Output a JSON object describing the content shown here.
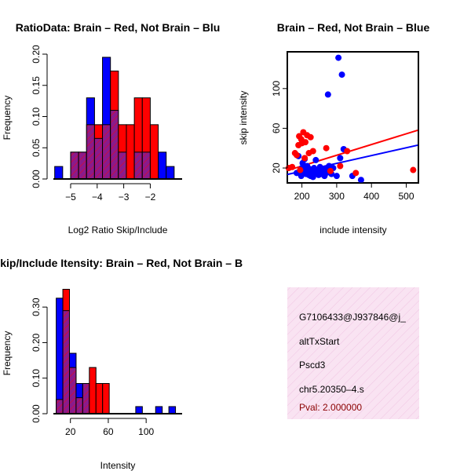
{
  "colors": {
    "red": "#ff0000",
    "blue": "#0000ff",
    "purple": "#8b1a8b",
    "info_bg": "#f7dcef",
    "pval": "#8b0000"
  },
  "chart_data": [
    {
      "type": "bar",
      "id": "ratio_hist",
      "title": "RatioData: Brain – Red, Not Brain – Blu",
      "xlabel": "Log2 Ratio Skip/Include",
      "ylabel": "Frequency",
      "xlim": [
        -5.65,
        -0.8
      ],
      "ylim": [
        0,
        0.2
      ],
      "xticks": [
        -5,
        -4,
        -3,
        -2
      ],
      "xtick_labels": [
        "−5",
        "−4",
        "−3",
        "−2"
      ],
      "yticks": [
        0,
        0.05,
        0.1,
        0.15,
        0.2
      ],
      "ytick_labels": [
        "0.00",
        "0.05",
        "0.10",
        "0.15",
        "0.20"
      ],
      "bin_edges": [
        -5.6,
        -5.3,
        -5.0,
        -4.7,
        -4.4,
        -4.1,
        -3.8,
        -3.5,
        -3.2,
        -2.9,
        -2.6,
        -2.3,
        -2.0,
        -1.7,
        -1.4,
        -1.1
      ],
      "series": [
        {
          "name": "Not Brain",
          "color": "blue",
          "values": [
            0.02,
            0.0,
            0.043,
            0.043,
            0.13,
            0.065,
            0.195,
            0.11,
            0.043,
            0.0,
            0.043,
            0.043,
            0.0,
            0.043,
            0.02
          ]
        },
        {
          "name": "Brain",
          "color": "red",
          "values": [
            0.0,
            0.0,
            0.043,
            0.043,
            0.087,
            0.087,
            0.087,
            0.173,
            0.087,
            0.087,
            0.13,
            0.13,
            0.087,
            0.0,
            0.0
          ]
        }
      ]
    },
    {
      "type": "scatter",
      "id": "intensity_scatter",
      "title": "Brain – Red, Not Brain – Blue",
      "xlabel": "include intensity",
      "ylabel": "skip intensity",
      "xlim": [
        158,
        535
      ],
      "ylim": [
        5,
        137
      ],
      "xticks": [
        200,
        300,
        400,
        500
      ],
      "xtick_labels": [
        "200",
        "300",
        "400",
        "500"
      ],
      "yticks": [
        20,
        60,
        100
      ],
      "ytick_labels": [
        "20",
        "60",
        "100"
      ],
      "series": [
        {
          "name": "Brain",
          "color": "red",
          "x": [
            162,
            172,
            180,
            185,
            190,
            192,
            198,
            200,
            204,
            210,
            215,
            220,
            225,
            232,
            195,
            208,
            270,
            282,
            310,
            330,
            355,
            520
          ],
          "y": [
            20,
            21,
            35,
            33,
            43,
            52,
            49,
            45,
            56,
            46,
            53,
            35,
            51,
            37,
            18,
            30,
            40,
            17,
            22,
            37,
            15,
            18
          ],
          "fit_line": [
            [
              158,
              533
            ],
            [
              17.5,
              58
            ]
          ]
        },
        {
          "name": "Not Brain",
          "color": "blue",
          "x": [
            185,
            190,
            195,
            198,
            200,
            202,
            205,
            208,
            210,
            212,
            215,
            218,
            220,
            222,
            225,
            228,
            230,
            232,
            235,
            238,
            240,
            245,
            248,
            250,
            252,
            255,
            258,
            262,
            265,
            268,
            270,
            275,
            278,
            280,
            285,
            290,
            300,
            305,
            310,
            315,
            320,
            345,
            370
          ],
          "y": [
            15,
            32,
            18,
            12,
            20,
            25,
            15,
            29,
            18,
            14,
            22,
            16,
            13,
            19,
            12,
            17,
            14,
            11,
            20,
            16,
            28,
            15,
            13,
            18,
            21,
            14,
            17,
            16,
            12,
            19,
            15,
            94,
            22,
            18,
            14,
            20,
            12,
            131,
            30,
            114,
            39,
            12,
            8
          ],
          "fit_line": [
            [
              158,
              533
            ],
            [
              13.5,
              43
            ]
          ]
        }
      ]
    },
    {
      "type": "bar",
      "id": "intensity_hist",
      "title": "Skip/Include Itensity: Brain – Red, Not Brain – B",
      "xlabel": "Intensity",
      "ylabel": "Frequency",
      "xlim": [
        2,
        138
      ],
      "ylim": [
        0,
        0.36
      ],
      "xticks": [
        20,
        60,
        100
      ],
      "xtick_labels": [
        "20",
        "60",
        "100"
      ],
      "yticks": [
        0,
        0.1,
        0.2,
        0.3
      ],
      "ytick_labels": [
        "0.00",
        "0.10",
        "0.20",
        "0.30"
      ],
      "bin_edges": [
        5,
        12,
        19,
        26,
        33,
        40,
        47,
        54,
        61,
        68,
        75,
        82,
        89,
        96,
        103,
        110,
        117,
        124,
        131
      ],
      "series": [
        {
          "name": "Not Brain",
          "color": "blue",
          "values": [
            0.325,
            0.29,
            0.17,
            0.085,
            0.085,
            0.0,
            0.0,
            0.0,
            0.0,
            0.0,
            0.0,
            0.0,
            0.02,
            0.0,
            0.0,
            0.02,
            0.0,
            0.02
          ]
        },
        {
          "name": "Brain",
          "color": "red",
          "values": [
            0.04,
            0.35,
            0.13,
            0.045,
            0.085,
            0.13,
            0.085,
            0.085,
            0.0,
            0.0,
            0.0,
            0.0,
            0.0,
            0.0,
            0.0,
            0.0,
            0.0,
            0.0
          ]
        }
      ]
    }
  ],
  "info_panel": {
    "gene_id": "G7106433@J937846@j_",
    "event_type": "altTxStart",
    "gene_name": "Pscd3",
    "location": "chr5.20350–4.s",
    "pval": "Pval: 2.000000"
  }
}
